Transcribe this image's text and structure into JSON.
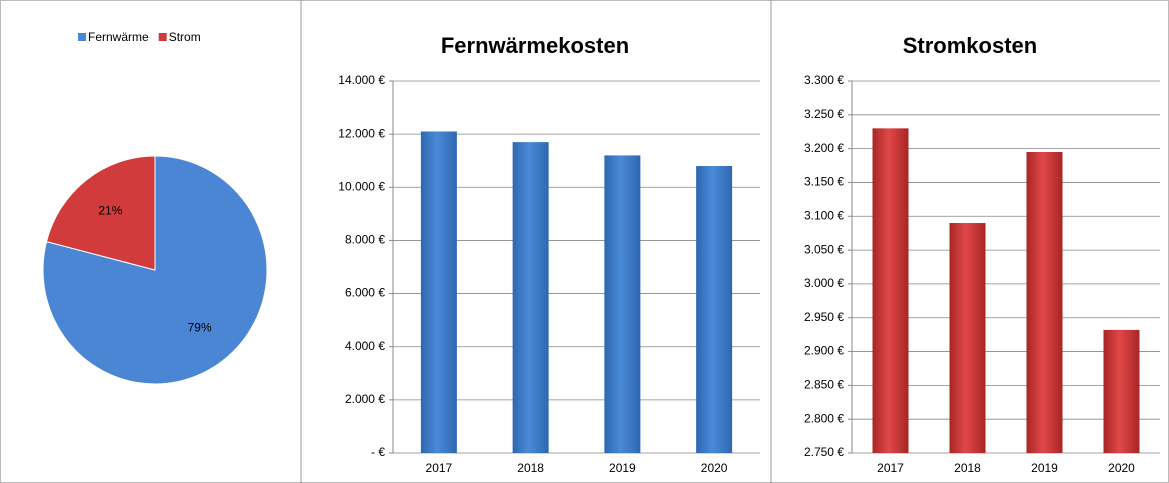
{
  "chart_data": [
    {
      "type": "pie",
      "categories": [
        "Fernwärme",
        "Strom"
      ],
      "values": [
        79,
        21
      ],
      "value_labels": [
        "79%",
        "21%"
      ],
      "colors": [
        "#4a86d4",
        "#d23b3b"
      ]
    },
    {
      "type": "bar",
      "title": "Fernwärmekosten",
      "categories": [
        "2017",
        "2018",
        "2019",
        "2020"
      ],
      "values": [
        12100,
        11700,
        11200,
        10800
      ],
      "color": "#3f7fcf",
      "ylim": [
        0,
        14000
      ],
      "yticks": [
        {
          "value": 0,
          "label": "-   €"
        },
        {
          "value": 2000,
          "label": "2.000 €"
        },
        {
          "value": 4000,
          "label": "4.000 €"
        },
        {
          "value": 6000,
          "label": "6.000 €"
        },
        {
          "value": 8000,
          "label": "8.000 €"
        },
        {
          "value": 10000,
          "label": "10.000 €"
        },
        {
          "value": 12000,
          "label": "12.000 €"
        },
        {
          "value": 14000,
          "label": "14.000 €"
        }
      ],
      "grid": true
    },
    {
      "type": "bar",
      "title": "Stromkosten",
      "categories": [
        "2017",
        "2018",
        "2019",
        "2020"
      ],
      "values": [
        3230,
        3090,
        3195,
        2932
      ],
      "color": "#d23b3b",
      "ylim": [
        2750,
        3300
      ],
      "yticks": [
        {
          "value": 2750,
          "label": "2.750 €"
        },
        {
          "value": 2800,
          "label": "2.800 €"
        },
        {
          "value": 2850,
          "label": "2.850 €"
        },
        {
          "value": 2900,
          "label": "2.900 €"
        },
        {
          "value": 2950,
          "label": "2.950 €"
        },
        {
          "value": 3000,
          "label": "3.000 €"
        },
        {
          "value": 3050,
          "label": "3.050 €"
        },
        {
          "value": 3100,
          "label": "3.100 €"
        },
        {
          "value": 3150,
          "label": "3.150 €"
        },
        {
          "value": 3200,
          "label": "3.200 €"
        },
        {
          "value": 3250,
          "label": "3.250 €"
        },
        {
          "value": 3300,
          "label": "3.300 €"
        }
      ],
      "grid": true
    }
  ]
}
